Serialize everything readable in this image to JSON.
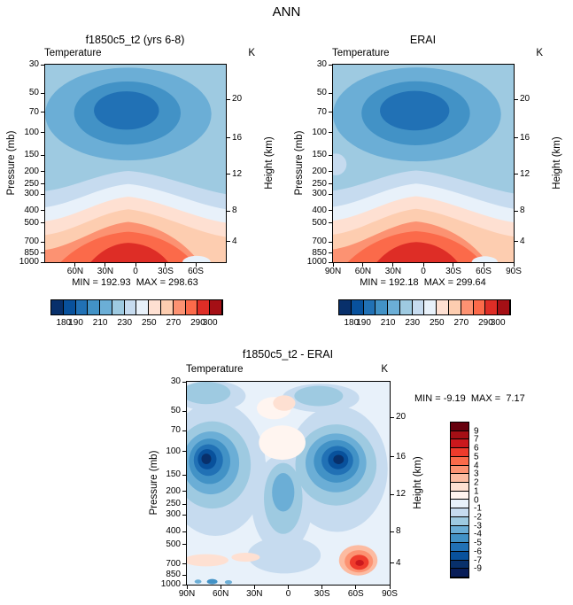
{
  "figure_title": "ANN",
  "palettes": {
    "temp": [
      "#08306b",
      "#08519c",
      "#2171b5",
      "#4292c6",
      "#6baed6",
      "#9ecae1",
      "#c6dbef",
      "#e8f1fa",
      "#fee0d2",
      "#fdcdb0",
      "#fc9272",
      "#fb6a4a",
      "#de2d26",
      "#a50f15"
    ],
    "diff": [
      "#67000d",
      "#a50f15",
      "#cb181d",
      "#ef3b2c",
      "#fb6a4a",
      "#fc9272",
      "#fcbba1",
      "#fee0d2",
      "#fff5f0",
      "#e8f1fa",
      "#c6dbef",
      "#9ecae1",
      "#6baed6",
      "#4292c6",
      "#2171b5",
      "#08519c",
      "#08306b",
      "#081d58"
    ]
  },
  "chart_data": [
    {
      "type": "filled-contour-latitude-pressure",
      "title": "f1850c5_t2 (yrs 6-8)",
      "variable": "Temperature",
      "units": "K",
      "min": 192.93,
      "max": 298.63,
      "stats_text": "MIN = 192.93  MAX = 298.63",
      "x": {
        "range": [
          "90N",
          "90S"
        ],
        "ticks": [
          "60N",
          "30N",
          "0",
          "30S",
          "60S"
        ]
      },
      "y_pressure": {
        "label": "Pressure (mb)",
        "scale": "log",
        "ticks": [
          30,
          50,
          70,
          100,
          150,
          200,
          250,
          300,
          400,
          500,
          700,
          850,
          1000
        ]
      },
      "y_height": {
        "label": "Height (km)",
        "ticks": [
          20,
          16,
          12,
          8,
          4
        ]
      },
      "contour_levels": [
        180,
        190,
        200,
        210,
        220,
        230,
        240,
        250,
        260,
        270,
        280,
        290,
        300
      ],
      "colorbar": {
        "orientation": "horizontal",
        "palette": "temp",
        "labels": [
          "180",
          "190",
          "210",
          "230",
          "250",
          "270",
          "290",
          "300"
        ],
        "boundaries": [
          1,
          2,
          4,
          6,
          8,
          10,
          12,
          13
        ]
      }
    },
    {
      "type": "filled-contour-latitude-pressure",
      "title": "ERAI",
      "variable": "Temperature",
      "units": "K",
      "min": 192.18,
      "max": 299.64,
      "stats_text": "MIN = 192.18  MAX = 299.64",
      "x": {
        "range": [
          "90N",
          "90S"
        ],
        "ticks": [
          "90N",
          "60N",
          "30N",
          "0",
          "30S",
          "60S",
          "90S"
        ]
      },
      "y_pressure": {
        "label": "Pressure (mb)",
        "scale": "log",
        "ticks": [
          30,
          50,
          70,
          100,
          150,
          200,
          250,
          300,
          400,
          500,
          700,
          850,
          1000
        ]
      },
      "y_height": {
        "label": "Height (km)",
        "ticks": [
          20,
          16,
          12,
          8,
          4
        ]
      },
      "contour_levels": [
        180,
        190,
        200,
        210,
        220,
        230,
        240,
        250,
        260,
        270,
        280,
        290,
        300
      ],
      "colorbar": {
        "orientation": "horizontal",
        "palette": "temp",
        "labels": [
          "180",
          "190",
          "210",
          "230",
          "250",
          "270",
          "290",
          "300"
        ],
        "boundaries": [
          1,
          2,
          4,
          6,
          8,
          10,
          12,
          13
        ]
      }
    },
    {
      "type": "filled-contour-latitude-pressure-difference",
      "title": "f1850c5_t2 - ERAI",
      "variable": "Temperature",
      "units": "K",
      "min": -9.19,
      "max": 7.17,
      "stats_text": "MIN = -9.19  MAX =  7.17",
      "x": {
        "range": [
          "90N",
          "90S"
        ],
        "ticks": [
          "90N",
          "60N",
          "30N",
          "0",
          "30S",
          "60S",
          "90S"
        ]
      },
      "y_pressure": {
        "label": "Pressure (mb)",
        "scale": "log",
        "ticks": [
          30,
          50,
          70,
          100,
          150,
          200,
          250,
          300,
          400,
          500,
          700,
          850,
          1000
        ]
      },
      "y_height": {
        "label": "Height (km)",
        "ticks": [
          20,
          16,
          12,
          8,
          4
        ]
      },
      "contour_levels": [
        -9,
        -7,
        -6,
        -5,
        -4,
        -3,
        -2,
        -1,
        0,
        1,
        2,
        3,
        4,
        5,
        6,
        7,
        9
      ],
      "colorbar": {
        "orientation": "vertical",
        "palette": "diff",
        "labels": [
          "9",
          "7",
          "6",
          "5",
          "4",
          "3",
          "2",
          "1",
          "0",
          "-1",
          "-2",
          "-3",
          "-4",
          "-5",
          "-6",
          "-7",
          "-9"
        ],
        "boundaries": [
          1,
          2,
          3,
          4,
          5,
          6,
          7,
          8,
          9,
          10,
          11,
          12,
          13,
          14,
          15,
          16,
          17
        ]
      }
    }
  ]
}
